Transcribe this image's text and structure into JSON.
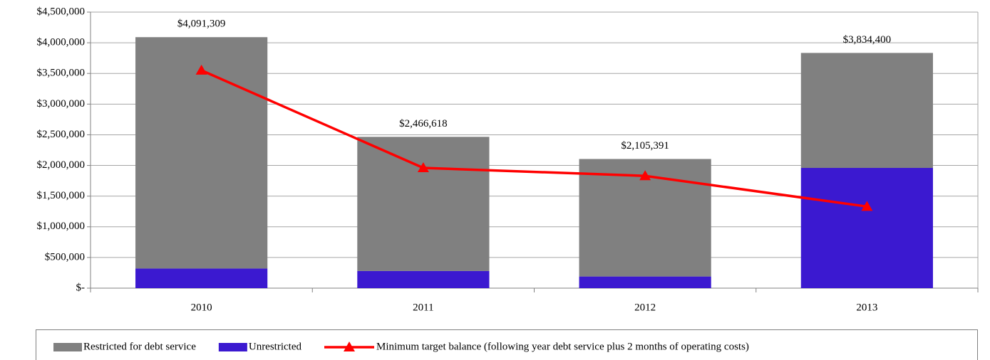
{
  "chart_data": {
    "type": "bar",
    "stacked": true,
    "categories": [
      "2010",
      "2011",
      "2012",
      "2013"
    ],
    "series": [
      {
        "name": "Restricted for debt service",
        "type": "bar",
        "color": "#808080",
        "values": [
          3771309,
          2186618,
          1915391,
          1874400
        ]
      },
      {
        "name": "Unrestricted",
        "type": "bar",
        "color": "#3b19d0",
        "values": [
          320000,
          280000,
          190000,
          1960000
        ]
      },
      {
        "name": "Minimum target balance (following year debt service plus 2 months of operating costs)",
        "type": "line",
        "color": "#ff0000",
        "marker": "triangle",
        "values": [
          3550000,
          1960000,
          1830000,
          1330000
        ]
      }
    ],
    "totals": [
      4091309,
      2466618,
      2105391,
      3834400
    ],
    "total_labels": [
      "$4,091,309",
      "$2,466,618",
      "$2,105,391",
      "$3,834,400"
    ],
    "ylim": [
      0,
      4500000
    ],
    "yticks": [
      {
        "value": 0,
        "label": "$-"
      },
      {
        "value": 500000,
        "label": "$500,000"
      },
      {
        "value": 1000000,
        "label": "$1,000,000"
      },
      {
        "value": 1500000,
        "label": "$1,500,000"
      },
      {
        "value": 2000000,
        "label": "$2,000,000"
      },
      {
        "value": 2500000,
        "label": "$2,500,000"
      },
      {
        "value": 3000000,
        "label": "$3,000,000"
      },
      {
        "value": 3500000,
        "label": "$3,500,000"
      },
      {
        "value": 4000000,
        "label": "$4,000,000"
      },
      {
        "value": 4500000,
        "label": "$4,500,000"
      }
    ],
    "grid": true,
    "legend": "bottom"
  }
}
